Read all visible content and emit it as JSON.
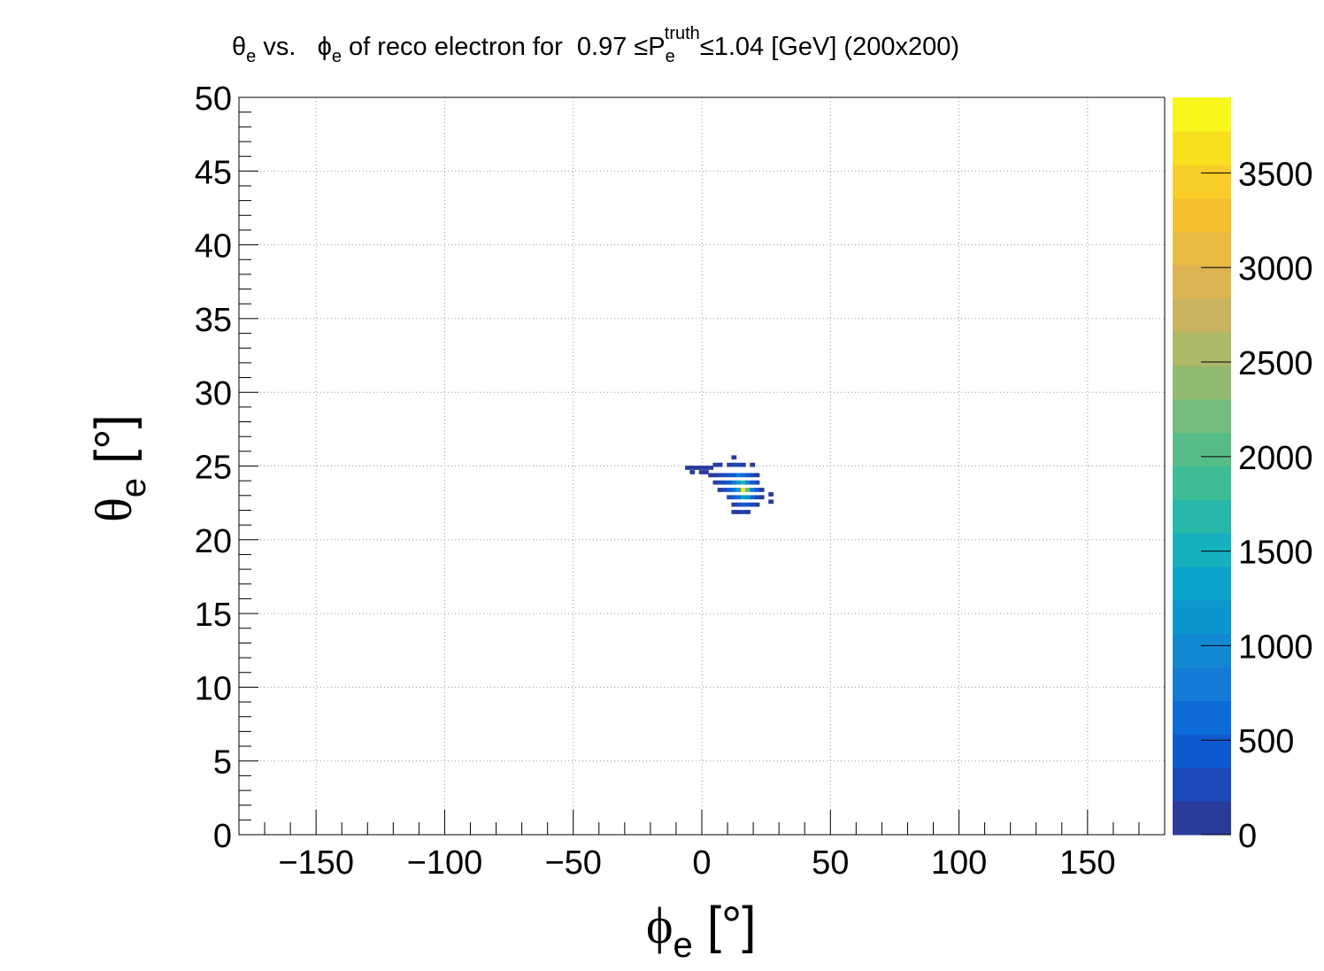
{
  "chart_data": {
    "type": "heatmap",
    "title": {
      "theta_sym": "θ",
      "theta_sub": "e",
      "vs": " vs.   ",
      "phi_sym": "ϕ",
      "phi_sub": "e",
      "mid": " of reco electron for  0.97 ≤P",
      "p_sub": "e",
      "p_sup": "truth",
      "tail": "≤1.04 [GeV] (200x200)"
    },
    "xlabel": {
      "sym": "ϕ",
      "sub": "e",
      "unit": " [°]"
    },
    "ylabel": {
      "sym": "θ",
      "sub": "e",
      "unit": " [°]"
    },
    "xlim": [
      -180,
      180
    ],
    "ylim": [
      0,
      50
    ],
    "zlim": [
      0,
      3900
    ],
    "x_ticks": [
      -150,
      -100,
      -50,
      0,
      50,
      100,
      150
    ],
    "x_tick_labels": [
      "−150",
      "−100",
      "−50",
      "0",
      "50",
      "100",
      "150"
    ],
    "y_ticks": [
      0,
      5,
      10,
      15,
      20,
      25,
      30,
      35,
      40,
      45,
      50
    ],
    "y_tick_labels": [
      "0",
      "5",
      "10",
      "15",
      "20",
      "25",
      "30",
      "35",
      "40",
      "45",
      "50"
    ],
    "z_ticks": [
      0,
      500,
      1000,
      1500,
      2000,
      2500,
      3000,
      3500
    ],
    "z_tick_labels": [
      "0",
      "500",
      "1000",
      "1500",
      "2000",
      "2500",
      "3000",
      "3500"
    ],
    "grid": true,
    "bins": {
      "nx": 200,
      "ny": 200
    },
    "palette": [
      "#2a3b9a",
      "#1b4ab8",
      "#0f5ad0",
      "#0d6bd8",
      "#137ad6",
      "#1288d2",
      "#0997ce",
      "#0aa4c8",
      "#17b0bf",
      "#27b8aa",
      "#3ebc96",
      "#58bc88",
      "#74bc7e",
      "#92ba70",
      "#adb868",
      "#c8b460",
      "#dcb452",
      "#eabb40",
      "#f4c02e",
      "#f9cd28",
      "#f8e01e",
      "#f8f61a"
    ],
    "cells": [
      [
        -5.6,
        24.9,
        80
      ],
      [
        -3.8,
        24.9,
        60
      ],
      [
        -2.0,
        24.9,
        110
      ],
      [
        -0.2,
        24.9,
        90
      ],
      [
        1.6,
        24.9,
        70
      ],
      [
        3.4,
        24.9,
        40
      ],
      [
        -3.8,
        24.6,
        40
      ],
      [
        -0.2,
        24.6,
        60
      ],
      [
        1.6,
        24.6,
        90
      ],
      [
        5.2,
        25.1,
        120
      ],
      [
        7.0,
        25.1,
        90
      ],
      [
        12.4,
        25.6,
        60
      ],
      [
        10.6,
        25.1,
        150
      ],
      [
        12.4,
        25.1,
        220
      ],
      [
        14.2,
        25.1,
        180
      ],
      [
        16.0,
        25.1,
        120
      ],
      [
        19.6,
        25.1,
        80
      ],
      [
        3.4,
        24.4,
        100
      ],
      [
        5.2,
        24.4,
        160
      ],
      [
        7.0,
        24.4,
        200
      ],
      [
        8.8,
        24.4,
        260
      ],
      [
        10.6,
        24.4,
        380
      ],
      [
        12.4,
        24.4,
        520
      ],
      [
        14.2,
        24.4,
        800
      ],
      [
        16.0,
        24.4,
        620
      ],
      [
        17.8,
        24.4,
        400
      ],
      [
        19.6,
        24.4,
        300
      ],
      [
        21.4,
        24.4,
        120
      ],
      [
        5.2,
        23.9,
        90
      ],
      [
        7.0,
        23.9,
        200
      ],
      [
        8.8,
        23.9,
        300
      ],
      [
        10.6,
        23.9,
        500
      ],
      [
        12.4,
        23.9,
        800
      ],
      [
        14.2,
        23.9,
        1200
      ],
      [
        16.0,
        23.9,
        1600
      ],
      [
        17.8,
        23.9,
        900
      ],
      [
        19.6,
        23.9,
        500
      ],
      [
        21.4,
        23.9,
        250
      ],
      [
        7.0,
        23.4,
        150
      ],
      [
        8.8,
        23.4,
        260
      ],
      [
        10.6,
        23.4,
        420
      ],
      [
        12.4,
        23.4,
        700
      ],
      [
        14.2,
        23.4,
        1100
      ],
      [
        16.0,
        23.4,
        3700
      ],
      [
        17.8,
        23.4,
        2000
      ],
      [
        19.6,
        23.4,
        800
      ],
      [
        21.4,
        23.4,
        400
      ],
      [
        23.2,
        23.4,
        150
      ],
      [
        10.6,
        22.9,
        200
      ],
      [
        12.4,
        22.9,
        400
      ],
      [
        14.2,
        22.9,
        700
      ],
      [
        16.0,
        22.9,
        1400
      ],
      [
        17.8,
        22.9,
        1100
      ],
      [
        19.6,
        22.9,
        600
      ],
      [
        21.4,
        22.9,
        300
      ],
      [
        23.2,
        22.9,
        120
      ],
      [
        26.8,
        23.1,
        60
      ],
      [
        12.4,
        22.4,
        150
      ],
      [
        14.2,
        22.4,
        300
      ],
      [
        16.0,
        22.4,
        450
      ],
      [
        17.8,
        22.4,
        400
      ],
      [
        19.6,
        22.4,
        250
      ],
      [
        21.4,
        22.4,
        100
      ],
      [
        26.8,
        22.6,
        50
      ],
      [
        12.4,
        21.9,
        90
      ],
      [
        14.2,
        21.9,
        150
      ],
      [
        16.0,
        21.9,
        180
      ],
      [
        17.8,
        21.9,
        120
      ]
    ]
  }
}
